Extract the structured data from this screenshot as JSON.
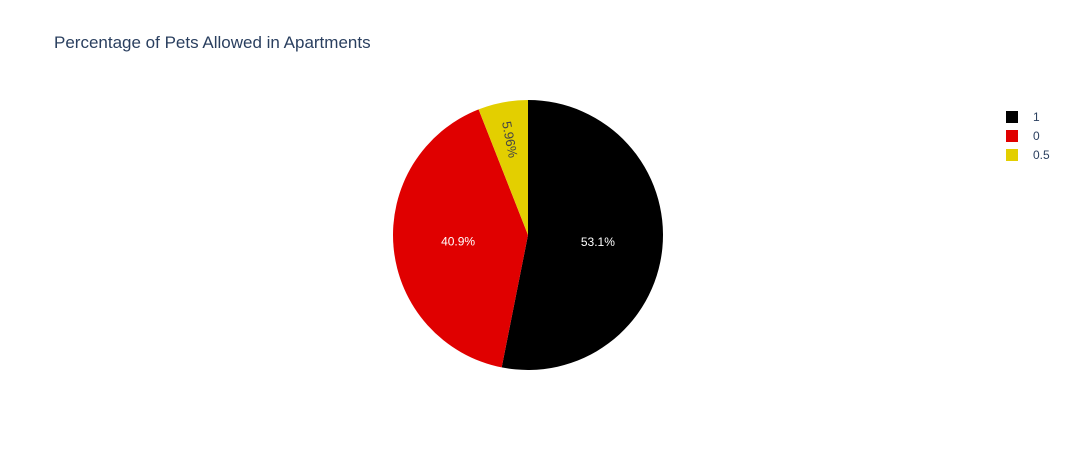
{
  "chart_data": {
    "type": "pie",
    "title": "Percentage of Pets Allowed in Apartments",
    "labels": [
      "1",
      "0",
      "0.5"
    ],
    "values": [
      53.1,
      40.9,
      5.96
    ],
    "percent_labels": [
      "53.1%",
      "40.9%",
      "5.96%"
    ],
    "colors": [
      "#000000",
      "#e00000",
      "#e3cf00"
    ],
    "text_colors": [
      "#ffffff",
      "#ffffff",
      "#444444"
    ],
    "direction": "clockwise",
    "start": "top",
    "legend_position": "top-right"
  }
}
